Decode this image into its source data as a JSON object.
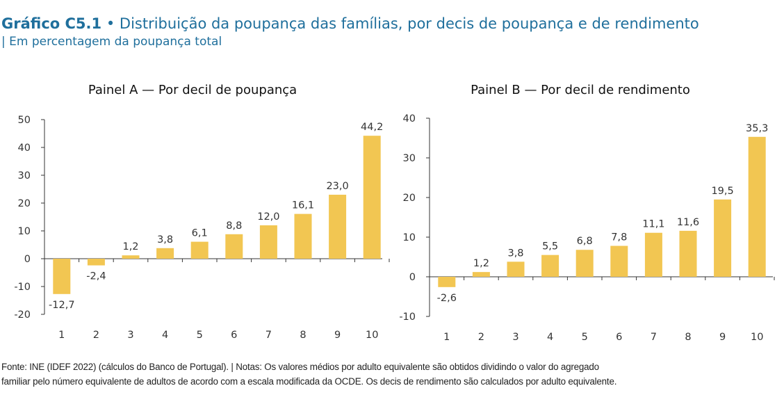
{
  "title": {
    "label": "Gráfico C5.1",
    "separator": "•",
    "text": "Distribuição da poupança das famílias, por decis de poupança e de rendimento",
    "subtitle": "| Em percentagem da poupança total"
  },
  "colors": {
    "title": "#1f6f9c",
    "bar": "#f2c652",
    "axis": "#333333"
  },
  "chart_data": [
    {
      "type": "bar",
      "title": "Painel A — Por decil de poupança",
      "xlabel": "",
      "ylabel": "",
      "categories": [
        "1",
        "2",
        "3",
        "4",
        "5",
        "6",
        "7",
        "8",
        "9",
        "10"
      ],
      "values": [
        -12.7,
        -2.4,
        1.2,
        3.8,
        6.1,
        8.8,
        12.0,
        16.1,
        23.0,
        44.2
      ],
      "value_labels": [
        "-12,7",
        "-2,4",
        "1,2",
        "3,8",
        "6,1",
        "8,8",
        "12,0",
        "16,1",
        "23,0",
        "44,2"
      ],
      "ylim": [
        -20,
        50
      ],
      "yticks": [
        -20,
        -10,
        0,
        10,
        20,
        30,
        40,
        50
      ],
      "ytick_labels": [
        "-20",
        "-10",
        "0",
        "10",
        "20",
        "30",
        "40",
        "50"
      ],
      "grid": false
    },
    {
      "type": "bar",
      "title": "Painel B — Por decil de rendimento",
      "xlabel": "",
      "ylabel": "",
      "categories": [
        "1",
        "2",
        "3",
        "4",
        "5",
        "6",
        "7",
        "8",
        "9",
        "10"
      ],
      "values": [
        -2.6,
        1.2,
        3.8,
        5.5,
        6.8,
        7.8,
        11.1,
        11.6,
        19.5,
        35.3
      ],
      "value_labels": [
        "-2,6",
        "1,2",
        "3,8",
        "5,5",
        "6,8",
        "7,8",
        "11,1",
        "11,6",
        "19,5",
        "35,3"
      ],
      "ylim": [
        -10,
        40
      ],
      "yticks": [
        -10,
        0,
        10,
        20,
        30,
        40
      ],
      "ytick_labels": [
        "-10",
        "0",
        "10",
        "20",
        "30",
        "40"
      ],
      "grid": false
    }
  ],
  "footer": {
    "line1": "Fonte: INE (IDEF 2022) (cálculos do Banco de Portugal).  |  Notas: Os valores médios por adulto equivalente são obtidos dividindo o valor do agregado",
    "line2": "familiar pelo número equivalente de adultos de acordo com a escala modificada da OCDE. Os decis de rendimento são calculados por adulto equivalente."
  }
}
